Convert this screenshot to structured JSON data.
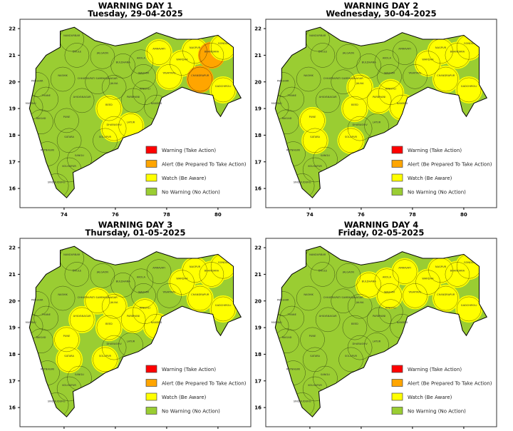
{
  "colors": {
    "warning": "#ff0000",
    "alert": "#ffa500",
    "watch": "#ffff00",
    "no_warning": "#9acd32"
  },
  "legend": {
    "placement": "lower-right",
    "items": [
      {
        "key": "warning",
        "label": "Warning (Take Action)"
      },
      {
        "key": "alert",
        "label": "Alert (Be Prepared To Take Action)"
      },
      {
        "key": "watch",
        "label": "Watch (Be Aware)"
      },
      {
        "key": "no_warning",
        "label": "No Warning (No Action)"
      }
    ]
  },
  "axes": {
    "lon_ticks": [
      74,
      76,
      78,
      80
    ],
    "lat_ticks": [
      16,
      17,
      18,
      19,
      20,
      21,
      22
    ],
    "lon_range": [
      72.28,
      81.28
    ],
    "lat_range": [
      15.28,
      22.35
    ]
  },
  "districts": [
    {
      "name": "NANDURBAR",
      "lon": 74.3,
      "lat": 21.6
    },
    {
      "name": "DHULE",
      "lon": 74.5,
      "lat": 21.0
    },
    {
      "name": "JALGAON",
      "lon": 75.5,
      "lat": 20.95
    },
    {
      "name": "BULDHANA",
      "lon": 76.3,
      "lat": 20.6
    },
    {
      "name": "AKOLA",
      "lon": 77.0,
      "lat": 20.75
    },
    {
      "name": "AMRAVATI",
      "lon": 77.7,
      "lat": 21.1
    },
    {
      "name": "WASHIM",
      "lon": 77.1,
      "lat": 20.2
    },
    {
      "name": "NAGPUR",
      "lon": 79.1,
      "lat": 21.15
    },
    {
      "name": "WARDHA",
      "lon": 78.6,
      "lat": 20.7
    },
    {
      "name": "BHANDARA",
      "lon": 79.75,
      "lat": 21.0
    },
    {
      "name": "GONDIA",
      "lon": 80.2,
      "lat": 21.3
    },
    {
      "name": "YAVATMAL",
      "lon": 78.1,
      "lat": 20.2
    },
    {
      "name": "CHANDRAPUR",
      "lon": 79.3,
      "lat": 20.1
    },
    {
      "name": "GADCHIROLI",
      "lon": 80.2,
      "lat": 19.7
    },
    {
      "name": "PALGHAR",
      "lon": 72.95,
      "lat": 19.9
    },
    {
      "name": "THANE",
      "lon": 73.3,
      "lat": 19.35
    },
    {
      "name": "MUMBAI",
      "lon": 72.7,
      "lat": 19.05
    },
    {
      "name": "RAIGAD",
      "lon": 73.1,
      "lat": 18.5
    },
    {
      "name": "RATNAGIRI",
      "lon": 73.35,
      "lat": 17.3
    },
    {
      "name": "SINDHUDURG",
      "lon": 73.7,
      "lat": 16.1
    },
    {
      "name": "NASHIK",
      "lon": 73.95,
      "lat": 20.1
    },
    {
      "name": "AHILYANAGAR",
      "lon": 74.7,
      "lat": 19.3
    },
    {
      "name": "PUNE",
      "lon": 74.1,
      "lat": 18.55
    },
    {
      "name": "SATARA",
      "lon": 74.2,
      "lat": 17.8
    },
    {
      "name": "SANGLI",
      "lon": 74.6,
      "lat": 17.1
    },
    {
      "name": "KOLHAPUR",
      "lon": 74.2,
      "lat": 16.7
    },
    {
      "name": "SOLAPUR",
      "lon": 75.6,
      "lat": 17.8
    },
    {
      "name": "CHHATRAPATI SAMBHAJINAGAR",
      "lon": 75.3,
      "lat": 20.0
    },
    {
      "name": "JALNA",
      "lon": 75.95,
      "lat": 19.8
    },
    {
      "name": "BEED",
      "lon": 75.75,
      "lat": 19.0
    },
    {
      "name": "HINGOLI",
      "lon": 77.15,
      "lat": 19.6
    },
    {
      "name": "PARBHANI",
      "lon": 76.7,
      "lat": 19.3
    },
    {
      "name": "NANDED",
      "lon": 77.6,
      "lat": 19.05
    },
    {
      "name": "LATUR",
      "lon": 76.6,
      "lat": 18.35
    },
    {
      "name": "DHARASHIV",
      "lon": 75.95,
      "lat": 18.25
    }
  ],
  "days": [
    {
      "title": "WARNING DAY 1",
      "date": "Tuesday, 29-04-2025",
      "watch": [
        "AMRAVATI",
        "NAGPUR",
        "WARDHA",
        "GONDIA",
        "YAVATMAL",
        "GADCHIROLI",
        "BEED",
        "DHARASHIV",
        "LATUR"
      ],
      "alert": [
        "BHANDARA",
        "CHANDRAPUR"
      ],
      "warning": []
    },
    {
      "title": "WARNING DAY 2",
      "date": "Wednesday, 30-04-2025",
      "watch": [
        "NAGPUR",
        "WARDHA",
        "BHANDARA",
        "GONDIA",
        "CHANDRAPUR",
        "GADCHIROLI",
        "JALNA",
        "HINGOLI",
        "PARBHANI",
        "NANDED",
        "BEED",
        "PUNE",
        "SATARA",
        "SOLAPUR"
      ],
      "alert": [],
      "warning": []
    },
    {
      "title": "WARNING DAY 3",
      "date": "Thursday, 01-05-2025",
      "watch": [
        "NAGPUR",
        "WARDHA",
        "BHANDARA",
        "GONDIA",
        "CHANDRAPUR",
        "GADCHIROLI",
        "CHHATRAPATI SAMBHAJINAGAR",
        "JALNA",
        "AHILYANAGAR",
        "HINGOLI",
        "PARBHANI",
        "NANDED",
        "BEED",
        "PUNE",
        "SATARA",
        "SOLAPUR"
      ],
      "alert": [],
      "warning": []
    },
    {
      "title": "WARNING DAY 4",
      "date": "Friday, 02-05-2025",
      "watch": [
        "BULDHANA",
        "AKOLA",
        "AMRAVATI",
        "WASHIM",
        "YAVATMAL",
        "NAGPUR",
        "WARDHA",
        "BHANDARA",
        "GONDIA",
        "CHANDRAPUR",
        "GADCHIROLI"
      ],
      "alert": [],
      "warning": []
    }
  ]
}
